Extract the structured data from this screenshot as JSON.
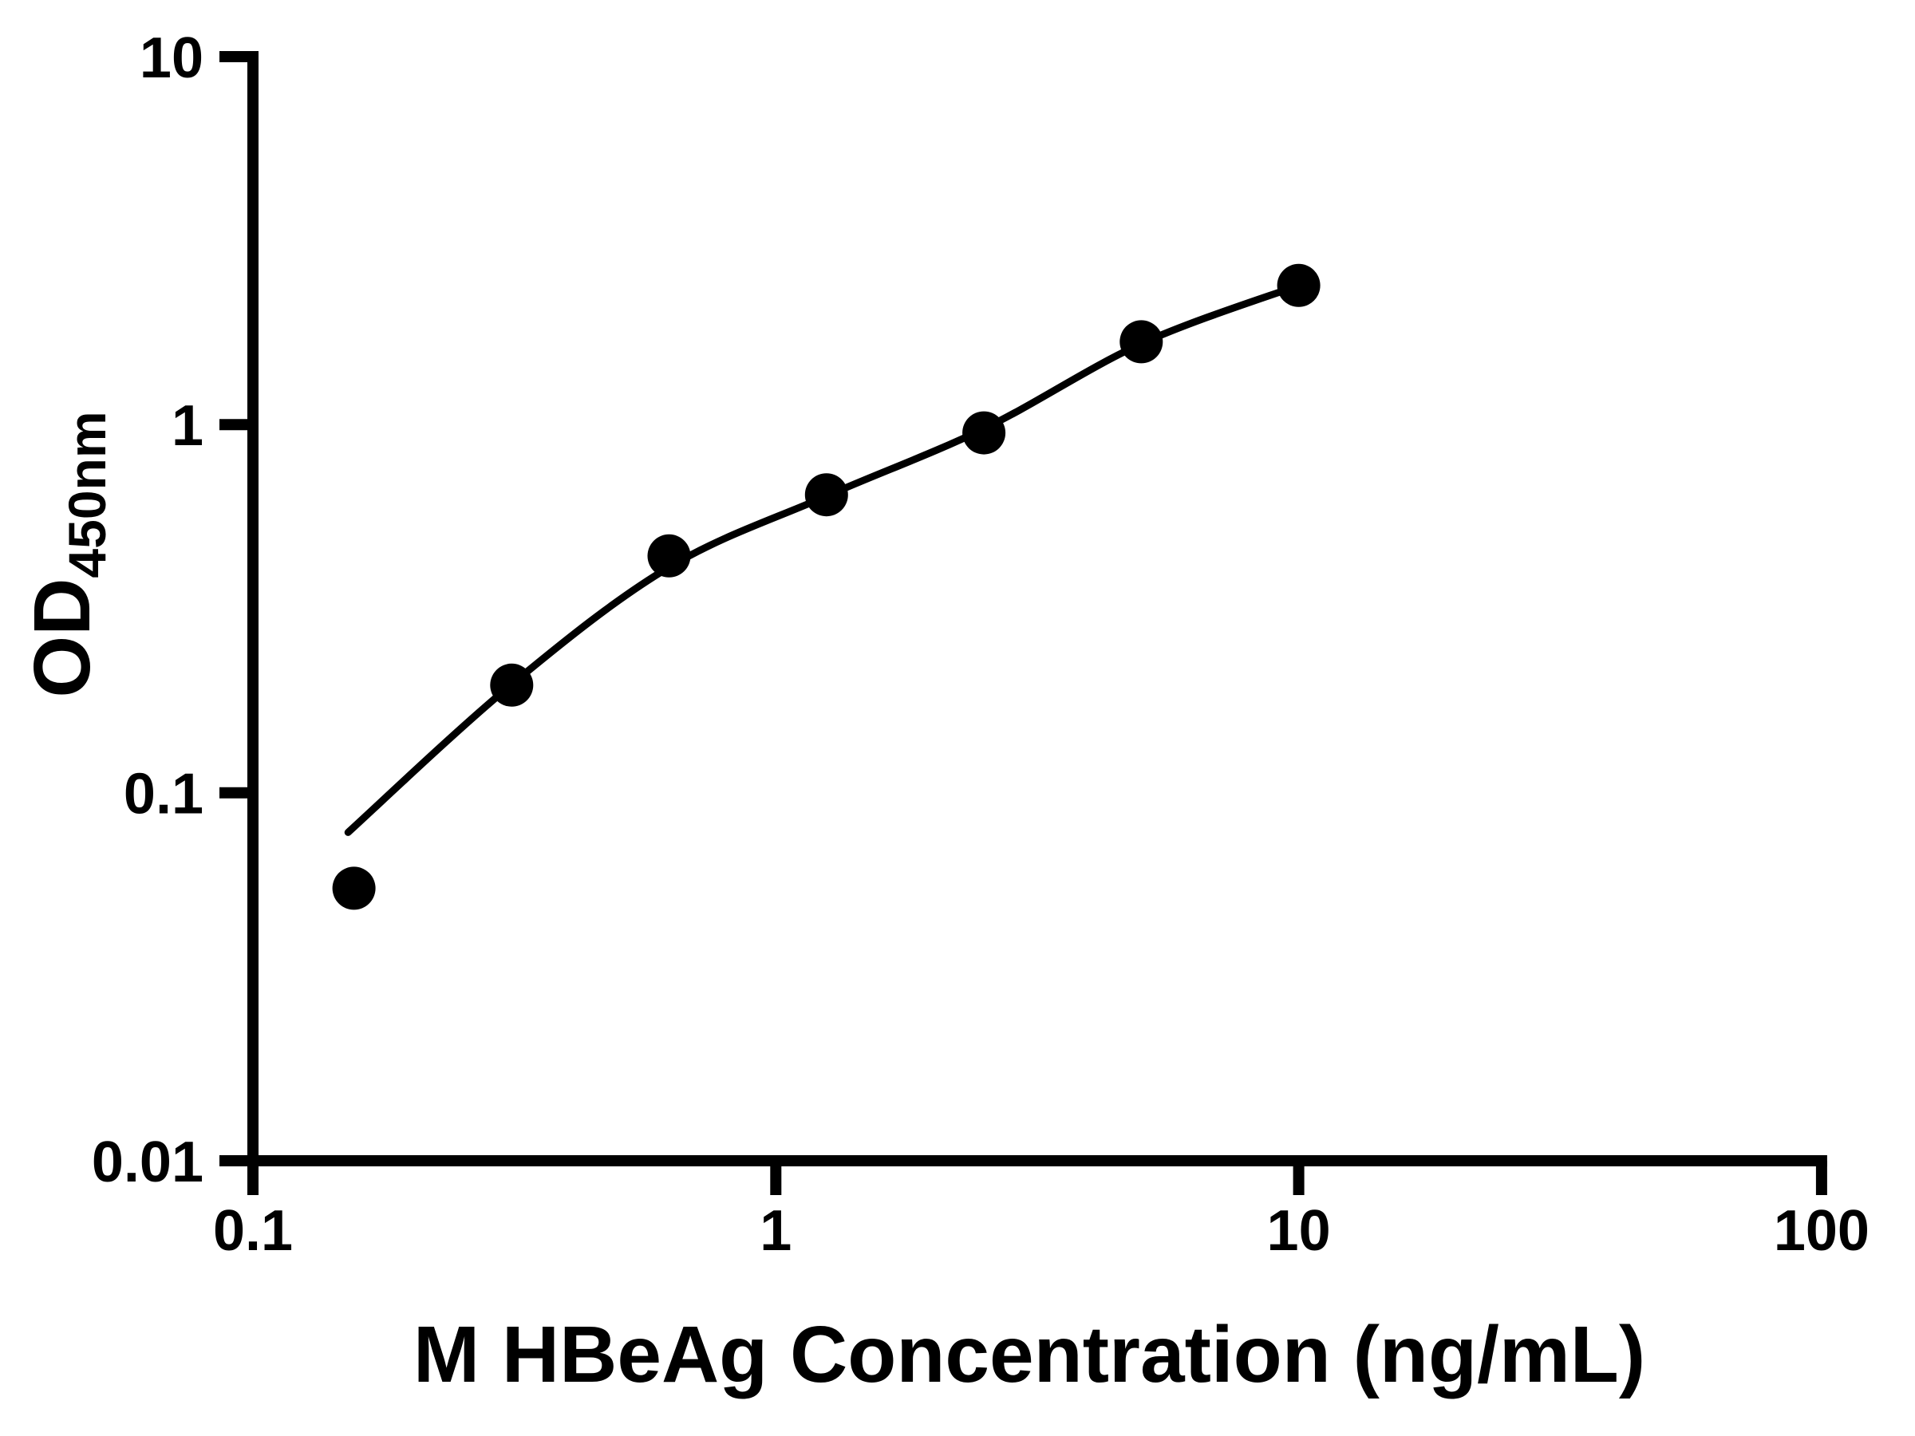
{
  "chart_data": {
    "type": "scatter",
    "title": "",
    "xlabel": "M HBeAg Concentration (ng/mL)",
    "ylabel": "OD",
    "ylabel_subscript": "450nm",
    "x_scale": "log",
    "y_scale": "log",
    "xlim": [
      0.1,
      100
    ],
    "ylim": [
      0.01,
      10
    ],
    "x_ticks": [
      "0.1",
      "1",
      "10",
      "100"
    ],
    "y_ticks": [
      "10",
      "1",
      "0.1",
      "0.01"
    ],
    "grid": false,
    "legend": null,
    "background_color": "#ffffff",
    "axis_color": "#000000",
    "marker_color": "#000000",
    "line_color": "#000000",
    "points": [
      {
        "x": 0.156,
        "y": 0.055
      },
      {
        "x": 0.3125,
        "y": 0.196
      },
      {
        "x": 0.625,
        "y": 0.44
      },
      {
        "x": 1.25,
        "y": 0.645
      },
      {
        "x": 2.5,
        "y": 0.95
      },
      {
        "x": 5,
        "y": 1.68
      },
      {
        "x": 10,
        "y": 2.39
      }
    ],
    "fit_curve": [
      {
        "x": 0.152,
        "y": 0.078
      },
      {
        "x": 0.3125,
        "y": 0.197
      },
      {
        "x": 0.625,
        "y": 0.41
      },
      {
        "x": 1.25,
        "y": 0.64
      },
      {
        "x": 2.5,
        "y": 0.975
      },
      {
        "x": 5,
        "y": 1.66
      },
      {
        "x": 10,
        "y": 2.39
      }
    ]
  }
}
